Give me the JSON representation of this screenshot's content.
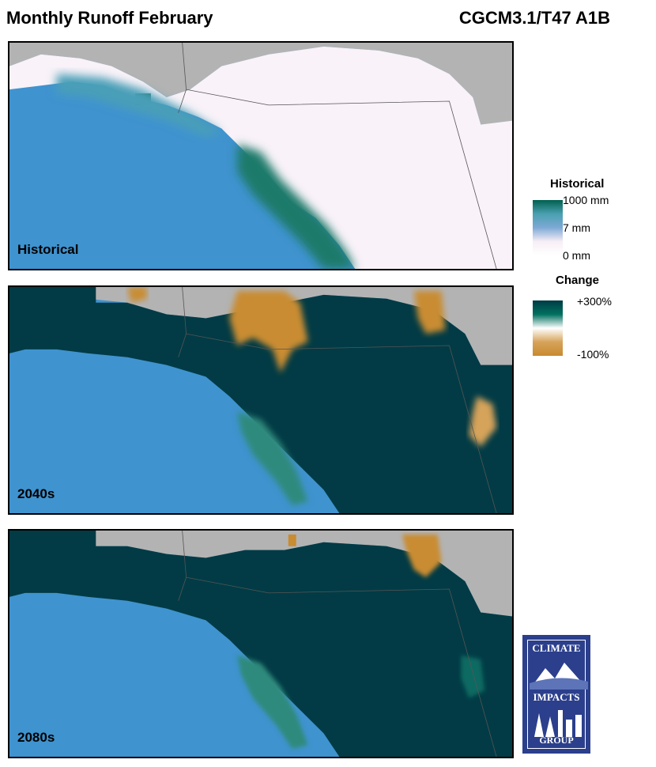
{
  "header": {
    "title": "Monthly Runoff February",
    "model": "CGCM3.1/T47 A1B"
  },
  "panels": [
    {
      "label": "Historical"
    },
    {
      "label": "2040s"
    },
    {
      "label": "2080s"
    }
  ],
  "legend": {
    "historical": {
      "title": "Historical",
      "labels": [
        "1000 mm",
        "7 mm",
        "0 mm"
      ],
      "colors": [
        "#00604f",
        "#4aa0b0",
        "#7fa9d6",
        "#f7eef6",
        "#ffffff"
      ]
    },
    "change": {
      "title": "Change",
      "labels": [
        "+300%",
        "-100%"
      ],
      "colors": [
        "#003b45",
        "#00705f",
        "#ffffff",
        "#d6a35a",
        "#c88a2e"
      ]
    }
  },
  "logo": {
    "line1": "CLIMATE",
    "line2": "IMPACTS",
    "line3": "GROUP"
  },
  "colors": {
    "ocean": "#3f93cf",
    "land_nodata": "#b3b3b3",
    "historical_land": "#f9f2f8",
    "change_high": "#023b45",
    "change_low": "#c98c31"
  }
}
